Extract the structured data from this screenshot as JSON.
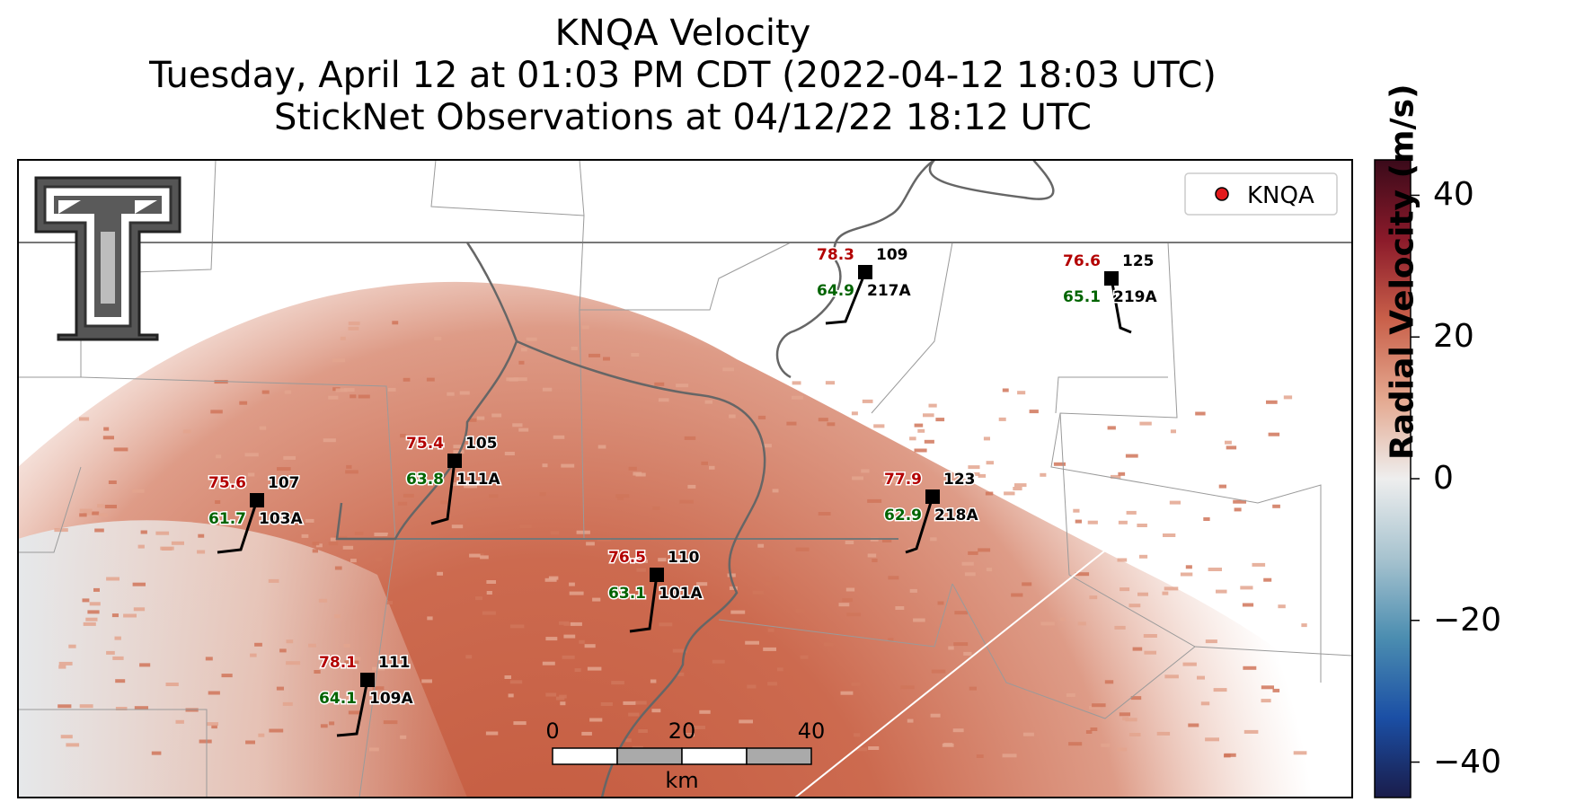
{
  "title": {
    "line1": "KNQA Velocity",
    "line2": "Tuesday, April 12 at 01:03 PM CDT (2022-04-12 18:03 UTC)",
    "line3": "StickNet Observations at 04/12/22 18:12 UTC"
  },
  "legend": {
    "label": "KNQA",
    "marker_color": "#e31a1c"
  },
  "colorbar": {
    "label": "Radial Velocity (m/s)",
    "range": [
      -45,
      45
    ],
    "ticks": [
      "40",
      "20",
      "0",
      "−20",
      "−40"
    ],
    "tick_values": [
      40,
      20,
      0,
      -20,
      -40
    ],
    "colors": [
      "#3a0a1a",
      "#8b1a2a",
      "#c9604a",
      "#e4a88f",
      "#eeeeee",
      "#a7c3cf",
      "#4b8db0",
      "#1b4fa5",
      "#1a1c4a"
    ]
  },
  "scalebar": {
    "labels": [
      "0",
      "20",
      "40"
    ],
    "unit": "km"
  },
  "logo": {
    "name": "Texas Tech double-T logo"
  },
  "stations": [
    {
      "id": "109",
      "name": "217A",
      "temp": "78.3",
      "dew": "64.9"
    },
    {
      "id": "125",
      "name": "219A",
      "temp": "76.6",
      "dew": "65.1"
    },
    {
      "id": "105",
      "name": "111A",
      "temp": "75.4",
      "dew": "63.8"
    },
    {
      "id": "107",
      "name": "103A",
      "temp": "75.6",
      "dew": "61.7"
    },
    {
      "id": "123",
      "name": "218A",
      "temp": "77.9",
      "dew": "62.9"
    },
    {
      "id": "110",
      "name": "101A",
      "temp": "76.5",
      "dew": "63.1"
    },
    {
      "id": "111",
      "name": "109A",
      "temp": "78.1",
      "dew": "64.1"
    }
  ],
  "colors": {
    "temp": "#b30000",
    "dew": "#006400",
    "radar": "#c9654c"
  }
}
